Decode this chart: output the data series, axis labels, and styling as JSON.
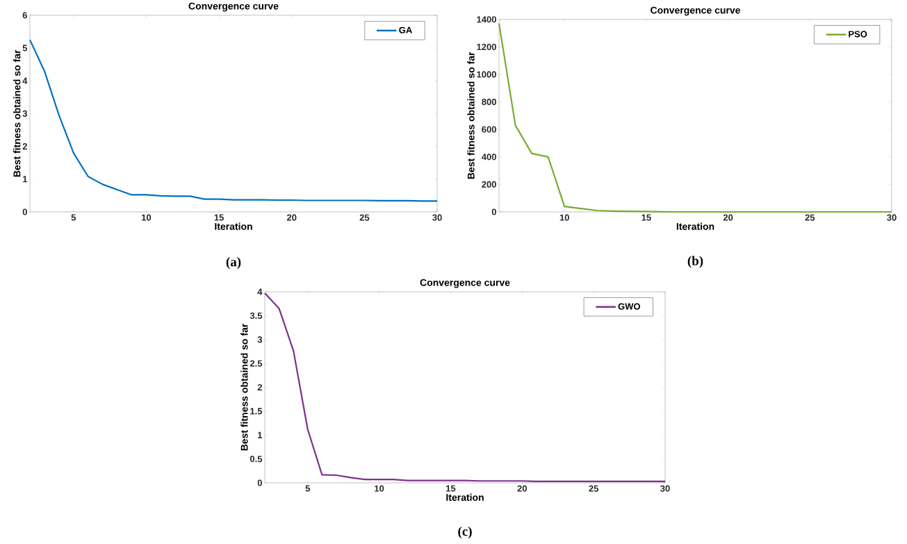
{
  "chart_data": [
    {
      "type": "line",
      "title": "Convergence curve",
      "xlabel": "Iteration",
      "ylabel": "Best fitness obtained so far",
      "annotations": [
        "(a)"
      ],
      "legend": "top right",
      "line_style": "solid",
      "x": [
        2,
        3,
        4,
        5,
        6,
        7,
        8,
        9,
        10,
        11,
        12,
        13,
        14,
        15,
        16,
        17,
        18,
        19,
        20,
        21,
        22,
        23,
        24,
        25,
        26,
        27,
        28,
        29,
        30
      ],
      "series": [
        {
          "name": "GA",
          "color": "#0072bd",
          "values": [
            5.25,
            4.3,
            2.95,
            1.8,
            1.08,
            0.84,
            0.68,
            0.52,
            0.52,
            0.49,
            0.48,
            0.48,
            0.39,
            0.39,
            0.37,
            0.37,
            0.37,
            0.36,
            0.36,
            0.35,
            0.35,
            0.35,
            0.35,
            0.35,
            0.34,
            0.34,
            0.34,
            0.33,
            0.33
          ]
        }
      ],
      "xlim": [
        2,
        30
      ],
      "ylim": [
        0,
        6
      ],
      "xticks": [
        5,
        10,
        15,
        20,
        25,
        30
      ],
      "yticks": [
        0,
        1,
        2,
        3,
        4,
        5,
        6
      ]
    },
    {
      "type": "line",
      "title": "Convergence curve",
      "xlabel": "Iteration",
      "ylabel": "Best fitness obtained so far",
      "annotations": [
        "(b)"
      ],
      "legend": "top right",
      "line_style": "solid",
      "x": [
        6,
        7,
        8,
        9,
        10,
        11,
        12,
        13,
        14,
        15,
        16,
        17,
        18,
        19,
        20,
        21,
        22,
        23,
        24,
        25,
        26,
        27,
        28,
        29,
        30
      ],
      "series": [
        {
          "name": "PSO",
          "color": "#77ac30",
          "values": [
            1370,
            630,
            425,
            400,
            40,
            25,
            10,
            6,
            4,
            3,
            1,
            0,
            0,
            0,
            0,
            0,
            0,
            0,
            0,
            0,
            0,
            0,
            0,
            0,
            0
          ]
        }
      ],
      "xlim": [
        6,
        30
      ],
      "ylim": [
        0,
        1400
      ],
      "xticks": [
        10,
        15,
        20,
        25,
        30
      ],
      "yticks": [
        0,
        200,
        400,
        600,
        800,
        1000,
        1200,
        1400
      ]
    },
    {
      "type": "line",
      "title": "Convergence curve",
      "xlabel": "Iteration",
      "ylabel": "Best fitness obtained so far",
      "annotations": [
        "(c)"
      ],
      "legend": "top right",
      "line_style": "solid",
      "x": [
        2,
        3,
        4,
        5,
        6,
        7,
        8,
        9,
        10,
        11,
        12,
        13,
        14,
        15,
        16,
        17,
        18,
        19,
        20,
        21,
        22,
        23,
        24,
        25,
        26,
        27,
        28,
        29,
        30
      ],
      "series": [
        {
          "name": "GWO",
          "color": "#7e2f8e",
          "values": [
            3.97,
            3.65,
            2.77,
            1.12,
            0.17,
            0.16,
            0.11,
            0.07,
            0.07,
            0.07,
            0.05,
            0.05,
            0.05,
            0.05,
            0.05,
            0.04,
            0.04,
            0.04,
            0.04,
            0.03,
            0.03,
            0.03,
            0.03,
            0.03,
            0.03,
            0.03,
            0.03,
            0.03,
            0.03
          ]
        }
      ],
      "xlim": [
        2,
        30
      ],
      "ylim": [
        0,
        4
      ],
      "xticks": [
        5,
        10,
        15,
        20,
        25,
        30
      ],
      "yticks": [
        0,
        0.5,
        1,
        1.5,
        2,
        2.5,
        3,
        3.5,
        4
      ]
    }
  ]
}
